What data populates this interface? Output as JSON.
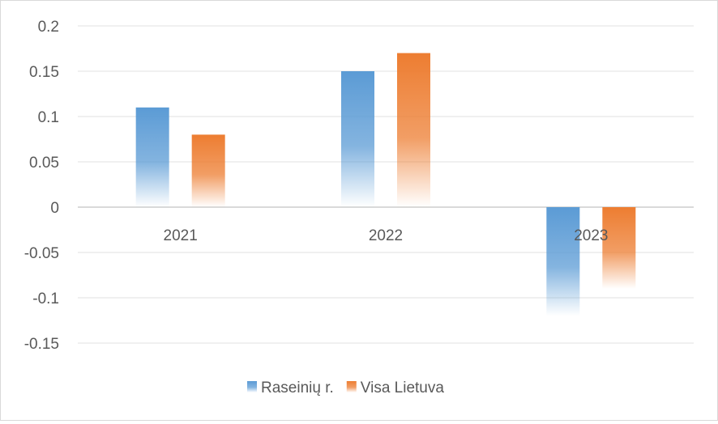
{
  "chart_data": {
    "type": "bar",
    "title": "",
    "xlabel": "",
    "ylabel": "",
    "categories": [
      "2021",
      "2022",
      "2023"
    ],
    "series": [
      {
        "name": "Raseinių r.",
        "values": [
          0.11,
          0.15,
          -0.12
        ],
        "color": "#5b9bd5"
      },
      {
        "name": "Visa Lietuva",
        "values": [
          0.08,
          0.17,
          -0.09
        ],
        "color": "#ed7d31"
      }
    ],
    "ylim": [
      -0.15,
      0.2
    ],
    "yticks": [
      0.2,
      0.15,
      0.1,
      0.05,
      0,
      -0.05,
      -0.1,
      -0.15
    ],
    "ytick_labels": [
      "0.2",
      "0.15",
      "0.1",
      "0.05",
      "0",
      "-0.05",
      "-0.1",
      "-0.15"
    ],
    "grid": true,
    "legend": "bottom"
  }
}
